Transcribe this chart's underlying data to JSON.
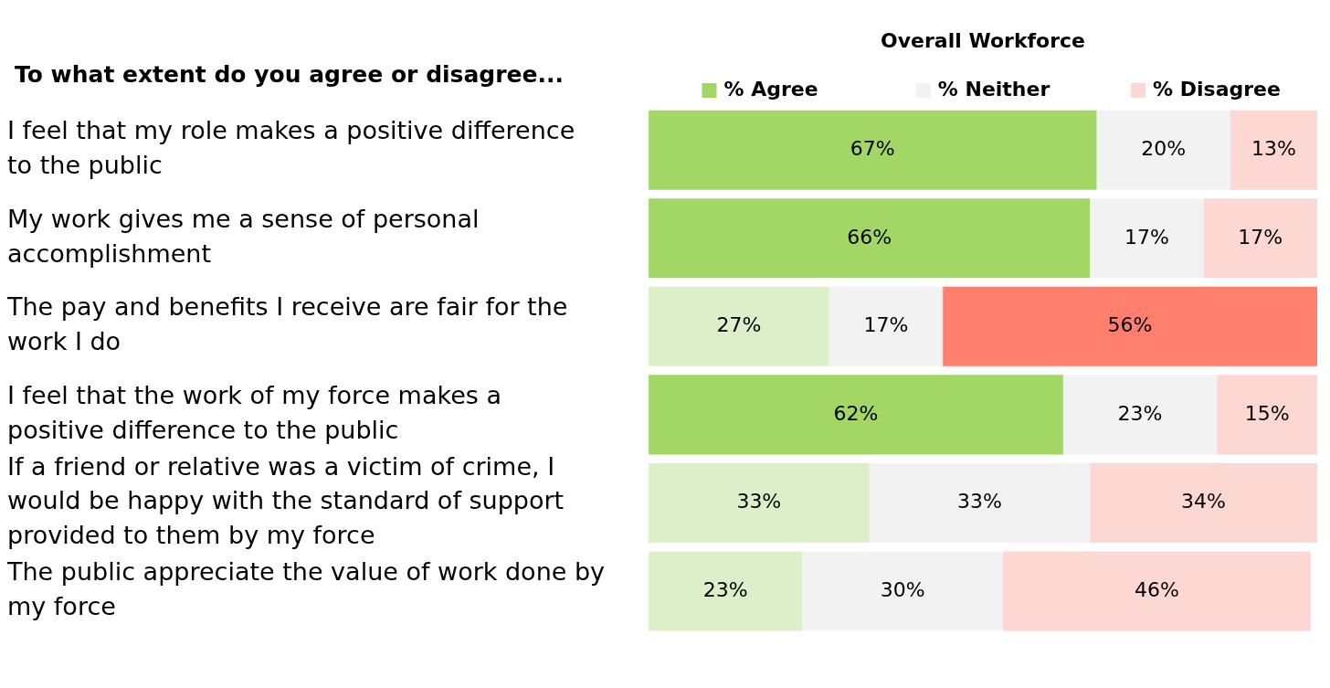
{
  "chart_data": {
    "type": "bar",
    "orientation": "horizontal",
    "stacked": true,
    "title": "To what extent do you agree or disagree...",
    "legend_title": "Overall Workforce",
    "legend": "top",
    "categories": [
      "I feel that my role makes a positive difference to the public",
      "My work gives me a sense of personal accomplishment",
      "The pay and benefits I receive are fair for the work I do",
      "I feel that the work of my force makes a positive difference to the public",
      "If a friend or relative was a victim of crime, I would be happy with the standard of support provided to them by my force",
      "The public appreciate the value of work done by my force"
    ],
    "series": [
      {
        "name": "% Agree",
        "values": [
          67,
          66,
          27,
          62,
          33,
          23
        ],
        "colors": [
          "#a2d765",
          "#a2d765",
          "#dcefc9",
          "#a2d765",
          "#dcefc9",
          "#dcefc9"
        ],
        "value_labels": [
          "67%",
          "66%",
          "27%",
          "62%",
          "33%",
          "23%"
        ]
      },
      {
        "name": "% Neither",
        "values": [
          20,
          17,
          17,
          23,
          33,
          30
        ],
        "colors": [
          "#f2f2f2",
          "#f2f2f2",
          "#f2f2f2",
          "#f2f2f2",
          "#f2f2f2",
          "#f2f2f2"
        ],
        "value_labels": [
          "20%",
          "17%",
          "17%",
          "23%",
          "33%",
          "30%"
        ]
      },
      {
        "name": "% Disagree",
        "values": [
          13,
          17,
          56,
          15,
          34,
          46
        ],
        "colors": [
          "#fdd8d3",
          "#fdd8d3",
          "#ff7f6e",
          "#fdd8d3",
          "#fdd8d3",
          "#fdd8d3"
        ],
        "value_labels": [
          "13%",
          "17%",
          "56%",
          "15%",
          "34%",
          "46%"
        ]
      }
    ]
  }
}
